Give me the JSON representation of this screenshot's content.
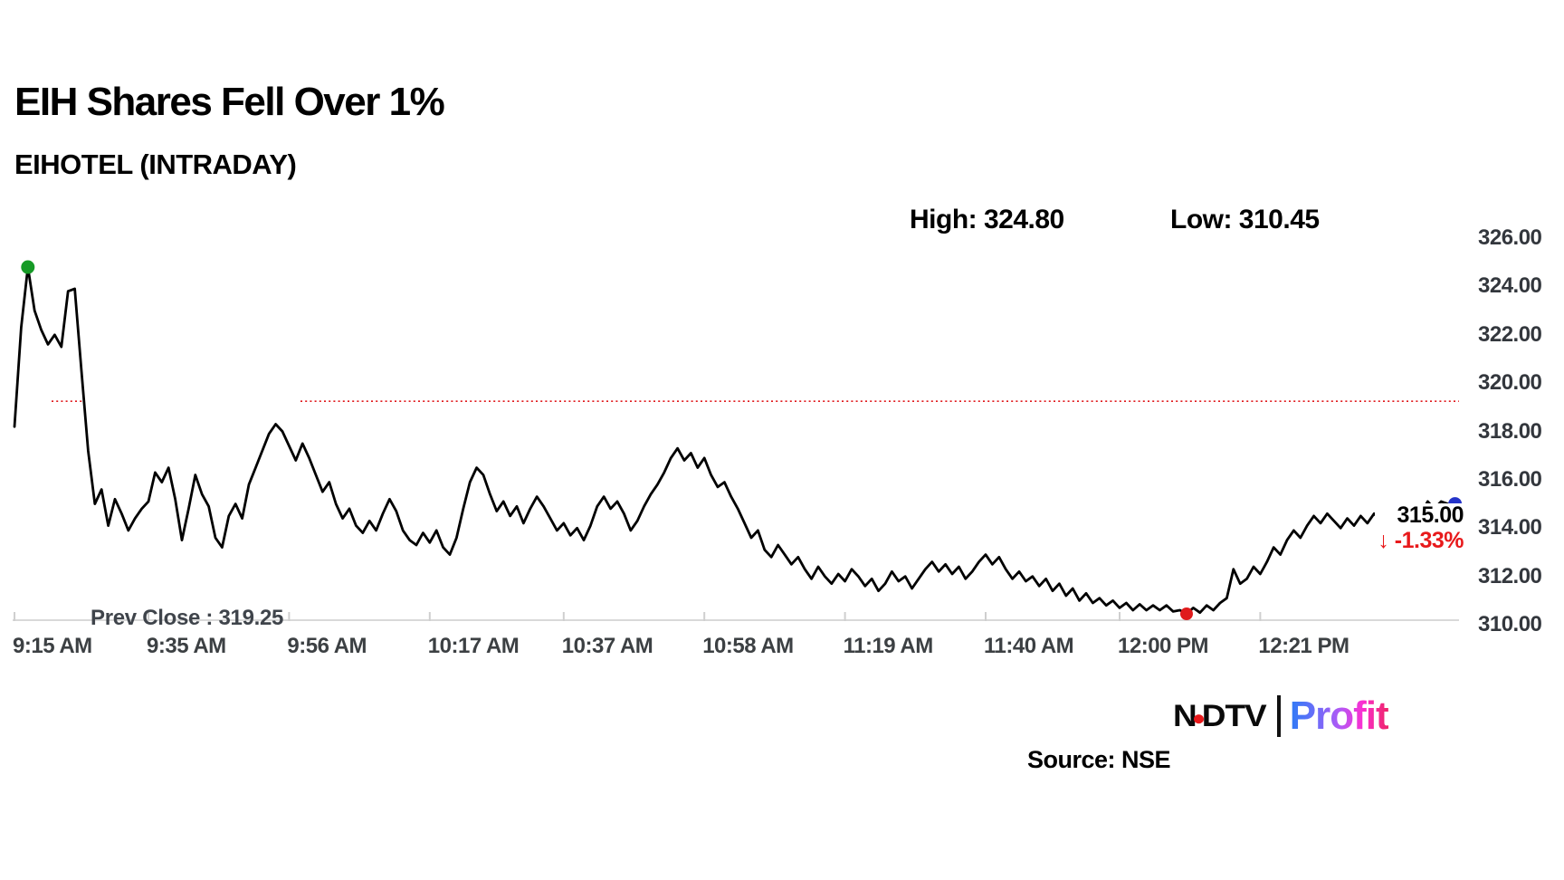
{
  "title": "EIH Shares Fell Over 1%",
  "subtitle": "EIHOTEL (INTRADAY)",
  "stats": {
    "high_label": "High: 324.80",
    "low_label": "Low: 310.45"
  },
  "prev_close_label": "Prev Close : 319.25",
  "price_callout": {
    "price": "315.00",
    "change": "↓ -1.33%"
  },
  "source": "Source: NSE",
  "logo": {
    "ndtv_left": "N",
    "ndtv_right": "DTV",
    "profit": "Profit"
  },
  "colors": {
    "line": "#000000",
    "prev_close_line": "#e0181b",
    "axis": "#d9d9d9",
    "tick": "#cfcfcf",
    "high_marker": "#169a26",
    "low_marker": "#e01b1c",
    "last_marker": "#2433c9",
    "change_text": "#e8191b"
  },
  "chart_data": {
    "type": "line",
    "symbol": "EIHOTEL",
    "title": "EIH Shares Fell Over 1%",
    "high": 324.8,
    "low": 310.45,
    "prev_close": 319.25,
    "last": 315.0,
    "change_pct": -1.33,
    "ylim": [
      310,
      326
    ],
    "y_ticks": [
      "326.00",
      "324.00",
      "322.00",
      "320.00",
      "318.00",
      "316.00",
      "314.00",
      "312.00",
      "310.00"
    ],
    "x_ticks": [
      {
        "label": "9:15 AM",
        "t": 0
      },
      {
        "label": "9:35 AM",
        "t": 20
      },
      {
        "label": "9:56 AM",
        "t": 41
      },
      {
        "label": "10:17 AM",
        "t": 62
      },
      {
        "label": "10:37 AM",
        "t": 82
      },
      {
        "label": "10:58 AM",
        "t": 103
      },
      {
        "label": "11:19 AM",
        "t": 124
      },
      {
        "label": "11:40 AM",
        "t": 145
      },
      {
        "label": "12:00 PM",
        "t": 165
      },
      {
        "label": "12:21 PM",
        "t": 186
      }
    ],
    "minutes_per_point": 1,
    "values": [
      318.2,
      322.3,
      324.8,
      323.0,
      322.2,
      321.6,
      322.0,
      321.5,
      323.8,
      323.9,
      320.5,
      317.2,
      315.0,
      315.6,
      314.1,
      315.2,
      314.6,
      313.9,
      314.4,
      314.8,
      315.1,
      316.3,
      315.9,
      316.5,
      315.2,
      313.5,
      314.8,
      316.2,
      315.4,
      314.9,
      313.6,
      313.2,
      314.5,
      315.0,
      314.4,
      315.8,
      316.5,
      317.2,
      317.9,
      318.3,
      318.0,
      317.4,
      316.8,
      317.5,
      316.9,
      316.2,
      315.5,
      315.9,
      315.0,
      314.4,
      314.8,
      314.1,
      313.8,
      314.3,
      313.9,
      314.6,
      315.2,
      314.7,
      313.9,
      313.5,
      313.3,
      313.8,
      313.4,
      313.9,
      313.2,
      312.9,
      313.6,
      314.8,
      315.9,
      316.5,
      316.2,
      315.4,
      314.7,
      315.1,
      314.5,
      314.9,
      314.2,
      314.8,
      315.3,
      314.9,
      314.4,
      313.9,
      314.2,
      313.7,
      314.0,
      313.5,
      314.1,
      314.9,
      315.3,
      314.8,
      315.1,
      314.6,
      313.9,
      314.3,
      314.9,
      315.4,
      315.8,
      316.3,
      316.9,
      317.3,
      316.8,
      317.1,
      316.5,
      316.9,
      316.2,
      315.7,
      315.9,
      315.3,
      314.8,
      314.2,
      313.6,
      313.9,
      313.1,
      312.8,
      313.3,
      312.9,
      312.5,
      312.8,
      312.3,
      311.9,
      312.4,
      312.0,
      311.7,
      312.1,
      311.8,
      312.3,
      312.0,
      311.6,
      311.9,
      311.4,
      311.7,
      312.2,
      311.8,
      312.0,
      311.5,
      311.9,
      312.3,
      312.6,
      312.2,
      312.5,
      312.1,
      312.4,
      311.9,
      312.2,
      312.6,
      312.9,
      312.5,
      312.8,
      312.3,
      311.9,
      312.2,
      311.8,
      312.0,
      311.6,
      311.9,
      311.4,
      311.7,
      311.2,
      311.5,
      311.0,
      311.3,
      310.9,
      311.1,
      310.8,
      311.0,
      310.7,
      310.9,
      310.6,
      310.85,
      310.6,
      310.8,
      310.6,
      310.8,
      310.55,
      310.6,
      310.45,
      310.7,
      310.5,
      310.8,
      310.6,
      310.9,
      311.1,
      312.3,
      311.7,
      311.9,
      312.4,
      312.1,
      312.6,
      313.2,
      312.9,
      313.5,
      313.9,
      313.6,
      314.1,
      314.5,
      314.2,
      314.6,
      314.3,
      314.0,
      314.4,
      314.1,
      314.5,
      314.2,
      314.6,
      314.3,
      314.7,
      314.4,
      314.8,
      314.5,
      314.9,
      314.6,
      315.1,
      314.8,
      315.1,
      315.0
    ],
    "markers": {
      "high": {
        "t": 2,
        "value": 324.8
      },
      "low": {
        "t": 175,
        "value": 310.45
      },
      "last": {
        "t": 214,
        "value": 315.0
      }
    },
    "legend": null,
    "grid": false
  }
}
